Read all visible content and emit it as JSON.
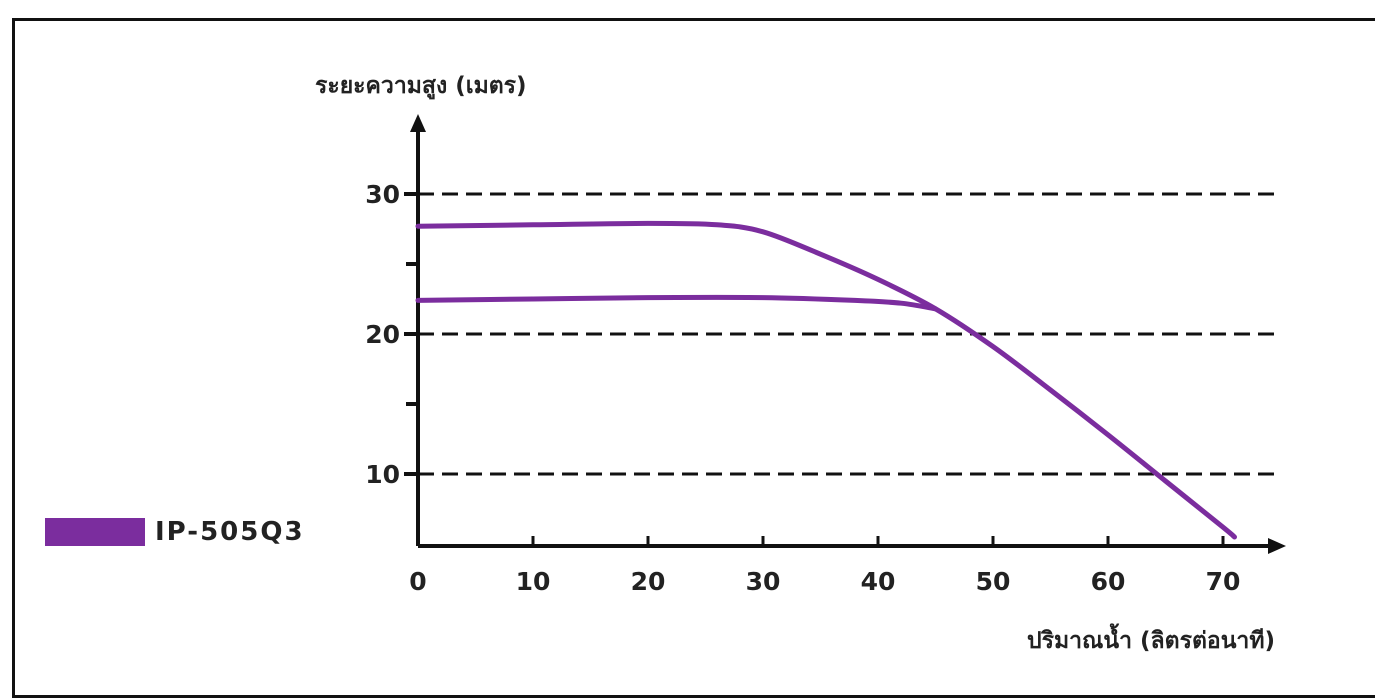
{
  "chart_data": {
    "type": "line",
    "title": "",
    "xlabel": "ปริมาณน้ำ (ลิตรต่อนาที)",
    "ylabel": "ระยะความสูง (เมตร)",
    "xlim": [
      0,
      72
    ],
    "ylim": [
      5,
      34
    ],
    "x_ticks": [
      0,
      10,
      20,
      30,
      40,
      50,
      60,
      70
    ],
    "y_ticks": [
      10,
      20,
      30
    ],
    "y_minor_ticks": [
      15,
      25
    ],
    "grid": "horizontal dashed at 10, 20, 30",
    "legend_position": "left",
    "series": [
      {
        "name": "IP-505Q3",
        "color": "#7B2D9E",
        "x": [
          0,
          10,
          20,
          26,
          30,
          35,
          40,
          45,
          50,
          55,
          60,
          65,
          70,
          71
        ],
        "y": [
          27.7,
          27.8,
          27.9,
          27.8,
          27.3,
          25.7,
          23.9,
          21.8,
          19.1,
          16.0,
          12.8,
          9.5,
          6.2,
          5.5
        ]
      },
      {
        "name": "",
        "color": "#7B2D9E",
        "x": [
          0,
          10,
          20,
          30,
          38,
          42,
          45
        ],
        "y": [
          22.4,
          22.5,
          22.6,
          22.6,
          22.4,
          22.2,
          21.8
        ]
      }
    ]
  }
}
